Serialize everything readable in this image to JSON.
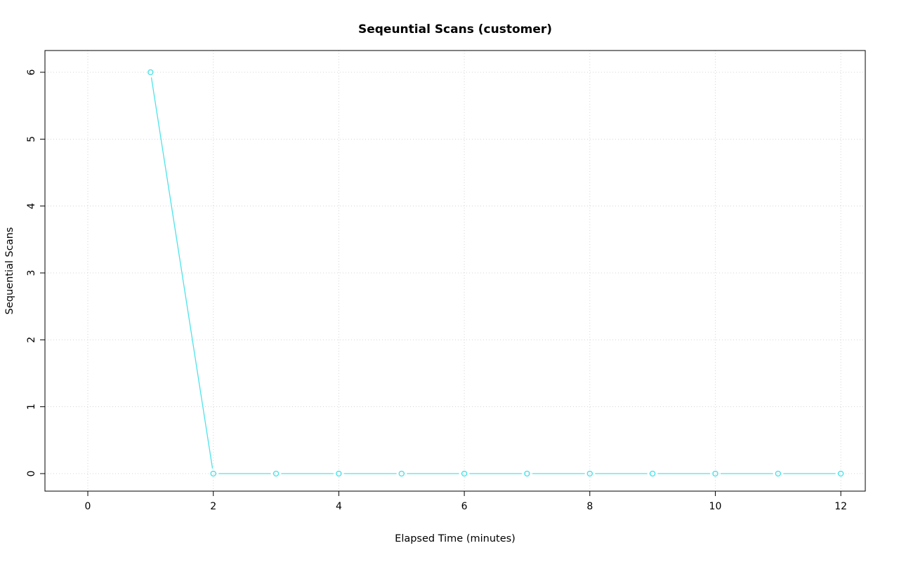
{
  "chart_data": {
    "type": "line",
    "title": "Seqeuntial Scans (customer)",
    "xlabel": "Elapsed Time (minutes)",
    "ylabel": "Sequential Scans",
    "x": [
      1,
      2,
      3,
      4,
      5,
      6,
      7,
      8,
      9,
      10,
      11,
      12
    ],
    "y": [
      6,
      0,
      0,
      0,
      0,
      0,
      0,
      0,
      0,
      0,
      0,
      0
    ],
    "xticks": [
      0,
      2,
      4,
      6,
      8,
      10,
      12
    ],
    "yticks": [
      0,
      1,
      2,
      3,
      4,
      5,
      6
    ],
    "xlim": [
      -0.683,
      12.39
    ],
    "ylim": [
      -0.262,
      6.325
    ],
    "grid": true,
    "legend": "none",
    "marker": "open-circle",
    "line_style": "points-and-line",
    "colors": {
      "series": "#4DE3EA",
      "grid": "#D4D4D4",
      "axis": "#000000",
      "background": "#FFFFFF"
    }
  }
}
